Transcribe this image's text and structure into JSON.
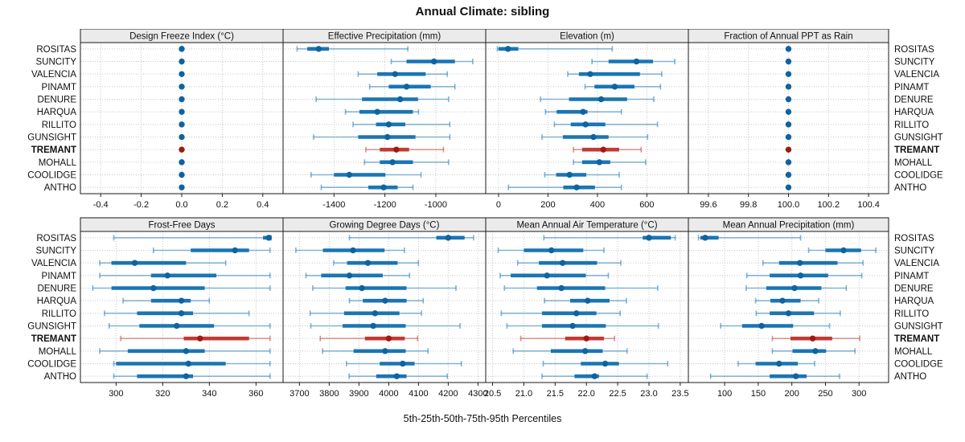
{
  "title": "Annual Climate: sibling",
  "caption": "5th-25th-50th-75th-95th Percentiles",
  "colors": {
    "blue_bar": "#1a75b4",
    "blue_dot": "#0f639e",
    "red_bar": "#c13b32",
    "red_dot": "#9c1b13",
    "strip_bg": "#ebebeb",
    "grid": "#c6c6c6",
    "frame": "#1a1a1a"
  },
  "chart_data": {
    "type": "dotplot",
    "note": "horizontal percentile dot plot; values are [p5,p25,p50,p75,p95] per site",
    "percentiles": [
      5,
      25,
      50,
      75,
      95
    ],
    "legend_caption": "5th-25th-50th-75th-95th Percentiles",
    "sites": [
      "ROSITAS",
      "SUNCITY",
      "VALENCIA",
      "PINAMT",
      "DENURE",
      "HARQUA",
      "RILLITO",
      "GUNSIGHT",
      "TREMANT",
      "MOHALL",
      "COOLIDGE",
      "ANTHO"
    ],
    "highlight_site": "TREMANT",
    "panels": [
      {
        "title": "Design Freeze Index (°C)",
        "xlim": [
          -0.5,
          0.5
        ],
        "tick_values": [
          -0.4,
          -0.2,
          0.0,
          0.2,
          0.4
        ],
        "tick_labels": [
          "-0.4",
          "-0.2",
          "0.0",
          "0.2",
          "0.4"
        ],
        "values": [
          [
            0,
            0,
            0,
            0,
            0
          ],
          [
            0,
            0,
            0,
            0,
            0
          ],
          [
            0,
            0,
            0,
            0,
            0
          ],
          [
            0,
            0,
            0,
            0,
            0
          ],
          [
            0,
            0,
            0,
            0,
            0
          ],
          [
            0,
            0,
            0,
            0,
            0
          ],
          [
            0,
            0,
            0,
            0,
            0
          ],
          [
            0,
            0,
            0,
            0,
            0
          ],
          [
            0,
            0,
            0,
            0,
            0
          ],
          [
            0,
            0,
            0,
            0,
            0
          ],
          [
            0,
            0,
            0,
            0,
            0
          ],
          [
            0,
            0,
            0,
            0,
            0
          ]
        ]
      },
      {
        "title": "Effective Precipitation (mm)",
        "xlim": [
          -1600,
          -804
        ],
        "tick_values": [
          -1400,
          -1200,
          -1000
        ],
        "tick_labels": [
          "-1400",
          "-1200",
          "-1000"
        ],
        "values": [
          [
            -1545,
            -1505,
            -1460,
            -1420,
            -1110
          ],
          [
            -1175,
            -1115,
            -1007,
            -925,
            -855
          ],
          [
            -1305,
            -1230,
            -1160,
            -1040,
            -955
          ],
          [
            -1260,
            -1185,
            -1115,
            -1020,
            -925
          ],
          [
            -1470,
            -1290,
            -1140,
            -1070,
            -950
          ],
          [
            -1355,
            -1300,
            -1230,
            -1090,
            -1068
          ],
          [
            -1325,
            -1235,
            -1185,
            -1120,
            -945
          ],
          [
            -1480,
            -1305,
            -1190,
            -1080,
            -945
          ],
          [
            -1275,
            -1220,
            -1155,
            -1105,
            -970
          ],
          [
            -1280,
            -1220,
            -1170,
            -1090,
            -950
          ],
          [
            -1490,
            -1400,
            -1340,
            -1198,
            -1058
          ],
          [
            -1450,
            -1265,
            -1205,
            -1150,
            -1090
          ]
        ]
      },
      {
        "title": "Elevation (m)",
        "xlim": [
          -52,
          768
        ],
        "tick_values": [
          0,
          200,
          400,
          600
        ],
        "tick_labels": [
          "0",
          "200",
          "400",
          "600"
        ],
        "values": [
          [
            -5,
            0,
            38,
            80,
            460
          ],
          [
            378,
            445,
            558,
            625,
            713
          ],
          [
            280,
            325,
            371,
            572,
            660
          ],
          [
            350,
            388,
            470,
            550,
            655
          ],
          [
            170,
            285,
            415,
            520,
            628
          ],
          [
            190,
            235,
            342,
            360,
            497
          ],
          [
            226,
            292,
            352,
            432,
            643
          ],
          [
            176,
            260,
            384,
            445,
            603
          ],
          [
            303,
            338,
            424,
            488,
            577
          ],
          [
            303,
            338,
            408,
            452,
            595
          ],
          [
            187,
            233,
            287,
            355,
            488
          ],
          [
            40,
            262,
            316,
            390,
            497
          ]
        ]
      },
      {
        "title": "Fraction of Annual PPT as Rain",
        "xlim": [
          99.5,
          100.5
        ],
        "tick_values": [
          99.6,
          99.8,
          100.0,
          100.2,
          100.4
        ],
        "tick_labels": [
          "99.6",
          "99.8",
          "100.0",
          "100.2",
          "100.4"
        ],
        "values": [
          [
            100,
            100,
            100,
            100,
            100
          ],
          [
            100,
            100,
            100,
            100,
            100
          ],
          [
            100,
            100,
            100,
            100,
            100
          ],
          [
            100,
            100,
            100,
            100,
            100
          ],
          [
            100,
            100,
            100,
            100,
            100
          ],
          [
            100,
            100,
            100,
            100,
            100
          ],
          [
            100,
            100,
            100,
            100,
            100
          ],
          [
            100,
            100,
            100,
            100,
            100
          ],
          [
            100,
            100,
            100,
            100,
            100
          ],
          [
            100,
            100,
            100,
            100,
            100
          ],
          [
            100,
            100,
            100,
            100,
            100
          ],
          [
            100,
            100,
            100,
            100,
            100
          ]
        ]
      },
      {
        "title": "Frost-Free Days",
        "xlim": [
          284.7,
          371.6
        ],
        "tick_values": [
          300,
          320,
          340,
          360
        ],
        "tick_labels": [
          "300",
          "320",
          "340",
          "360"
        ],
        "values": [
          [
            299,
            363,
            365.5,
            366,
            366.5
          ],
          [
            316,
            332,
            351,
            357,
            366
          ],
          [
            293,
            298,
            308,
            330,
            347
          ],
          [
            293,
            315,
            322,
            343,
            366
          ],
          [
            290,
            298,
            316,
            338,
            366
          ],
          [
            303,
            315,
            328,
            332,
            340
          ],
          [
            295,
            309,
            328,
            333,
            357
          ],
          [
            297,
            310,
            326,
            342,
            366
          ],
          [
            302,
            329,
            336,
            357,
            366
          ],
          [
            293,
            305,
            330,
            338,
            366
          ],
          [
            299,
            300,
            331,
            347,
            366
          ],
          [
            299,
            309,
            330,
            333,
            366
          ]
        ]
      },
      {
        "title": "Growing Degree Days (°C)",
        "xlim": [
          3645,
          4326
        ],
        "tick_values": [
          3700,
          3800,
          3900,
          4000,
          4100,
          4200,
          4300
        ],
        "tick_labels": [
          "3700",
          "3800",
          "3900",
          "4000",
          "4100",
          "4200",
          "4300"
        ],
        "values": [
          [
            3868,
            4160,
            4200,
            4255,
            4285
          ],
          [
            3688,
            3779,
            3880,
            3986,
            4053
          ],
          [
            3815,
            3860,
            3930,
            4030,
            4100
          ],
          [
            3722,
            3773,
            3868,
            3980,
            4070
          ],
          [
            3745,
            3855,
            3910,
            4060,
            4226
          ],
          [
            3868,
            3913,
            3988,
            4060,
            4116
          ],
          [
            3736,
            3850,
            3954,
            4036,
            4110
          ],
          [
            3738,
            3845,
            3948,
            4057,
            4240
          ],
          [
            3770,
            3920,
            4000,
            4054,
            4097
          ],
          [
            3778,
            3882,
            3988,
            4057,
            4132
          ],
          [
            3858,
            3970,
            4047,
            4087,
            4244
          ],
          [
            3867,
            3958,
            4027,
            4060,
            4197
          ]
        ]
      },
      {
        "title": "Mean Annual Air Temperature (°C)",
        "xlim": [
          20.39,
          23.63
        ],
        "tick_values": [
          20.5,
          21.0,
          21.5,
          22.0,
          22.5,
          23.0,
          23.5
        ],
        "tick_labels": [
          "20.5",
          "21.0",
          "21.5",
          "22.0",
          "22.5",
          "23.0",
          "23.5"
        ],
        "values": [
          [
            21.32,
            22.9,
            23.0,
            23.35,
            23.42
          ],
          [
            20.59,
            21.0,
            21.44,
            21.95,
            22.28
          ],
          [
            20.9,
            21.24,
            21.62,
            22.17,
            22.55
          ],
          [
            20.62,
            20.79,
            21.37,
            21.99,
            22.35
          ],
          [
            20.69,
            21.21,
            21.6,
            22.3,
            23.14
          ],
          [
            21.33,
            21.74,
            22.02,
            22.37,
            22.64
          ],
          [
            20.64,
            21.29,
            21.84,
            22.16,
            22.54
          ],
          [
            20.73,
            21.29,
            21.78,
            22.31,
            23.15
          ],
          [
            20.95,
            21.66,
            22.0,
            22.28,
            22.45
          ],
          [
            20.83,
            21.43,
            21.98,
            22.26,
            22.65
          ],
          [
            21.31,
            21.91,
            22.3,
            22.52,
            23.3
          ],
          [
            21.29,
            21.81,
            22.13,
            22.2,
            22.97
          ]
        ]
      },
      {
        "title": "Mean Annual Precipitation (mm)",
        "xlim": [
          46,
          344
        ],
        "tick_values": [
          100,
          150,
          200,
          250,
          300
        ],
        "tick_labels": [
          "100",
          "150",
          "200",
          "250",
          "300"
        ],
        "values": [
          [
            61,
            64,
            71,
            91,
            213
          ],
          [
            225,
            250,
            277,
            303,
            325
          ],
          [
            157,
            181,
            212,
            268,
            306
          ],
          [
            133,
            167,
            213,
            254,
            304
          ],
          [
            132,
            162,
            204,
            244,
            281
          ],
          [
            146,
            168,
            186,
            213,
            240
          ],
          [
            147,
            167,
            195,
            233,
            272
          ],
          [
            94,
            126,
            155,
            202,
            256
          ],
          [
            171,
            198,
            231,
            260,
            301
          ],
          [
            171,
            201,
            235,
            251,
            294
          ],
          [
            120,
            146,
            181,
            209,
            234
          ],
          [
            79,
            167,
            206,
            222,
            271
          ]
        ]
      }
    ]
  }
}
